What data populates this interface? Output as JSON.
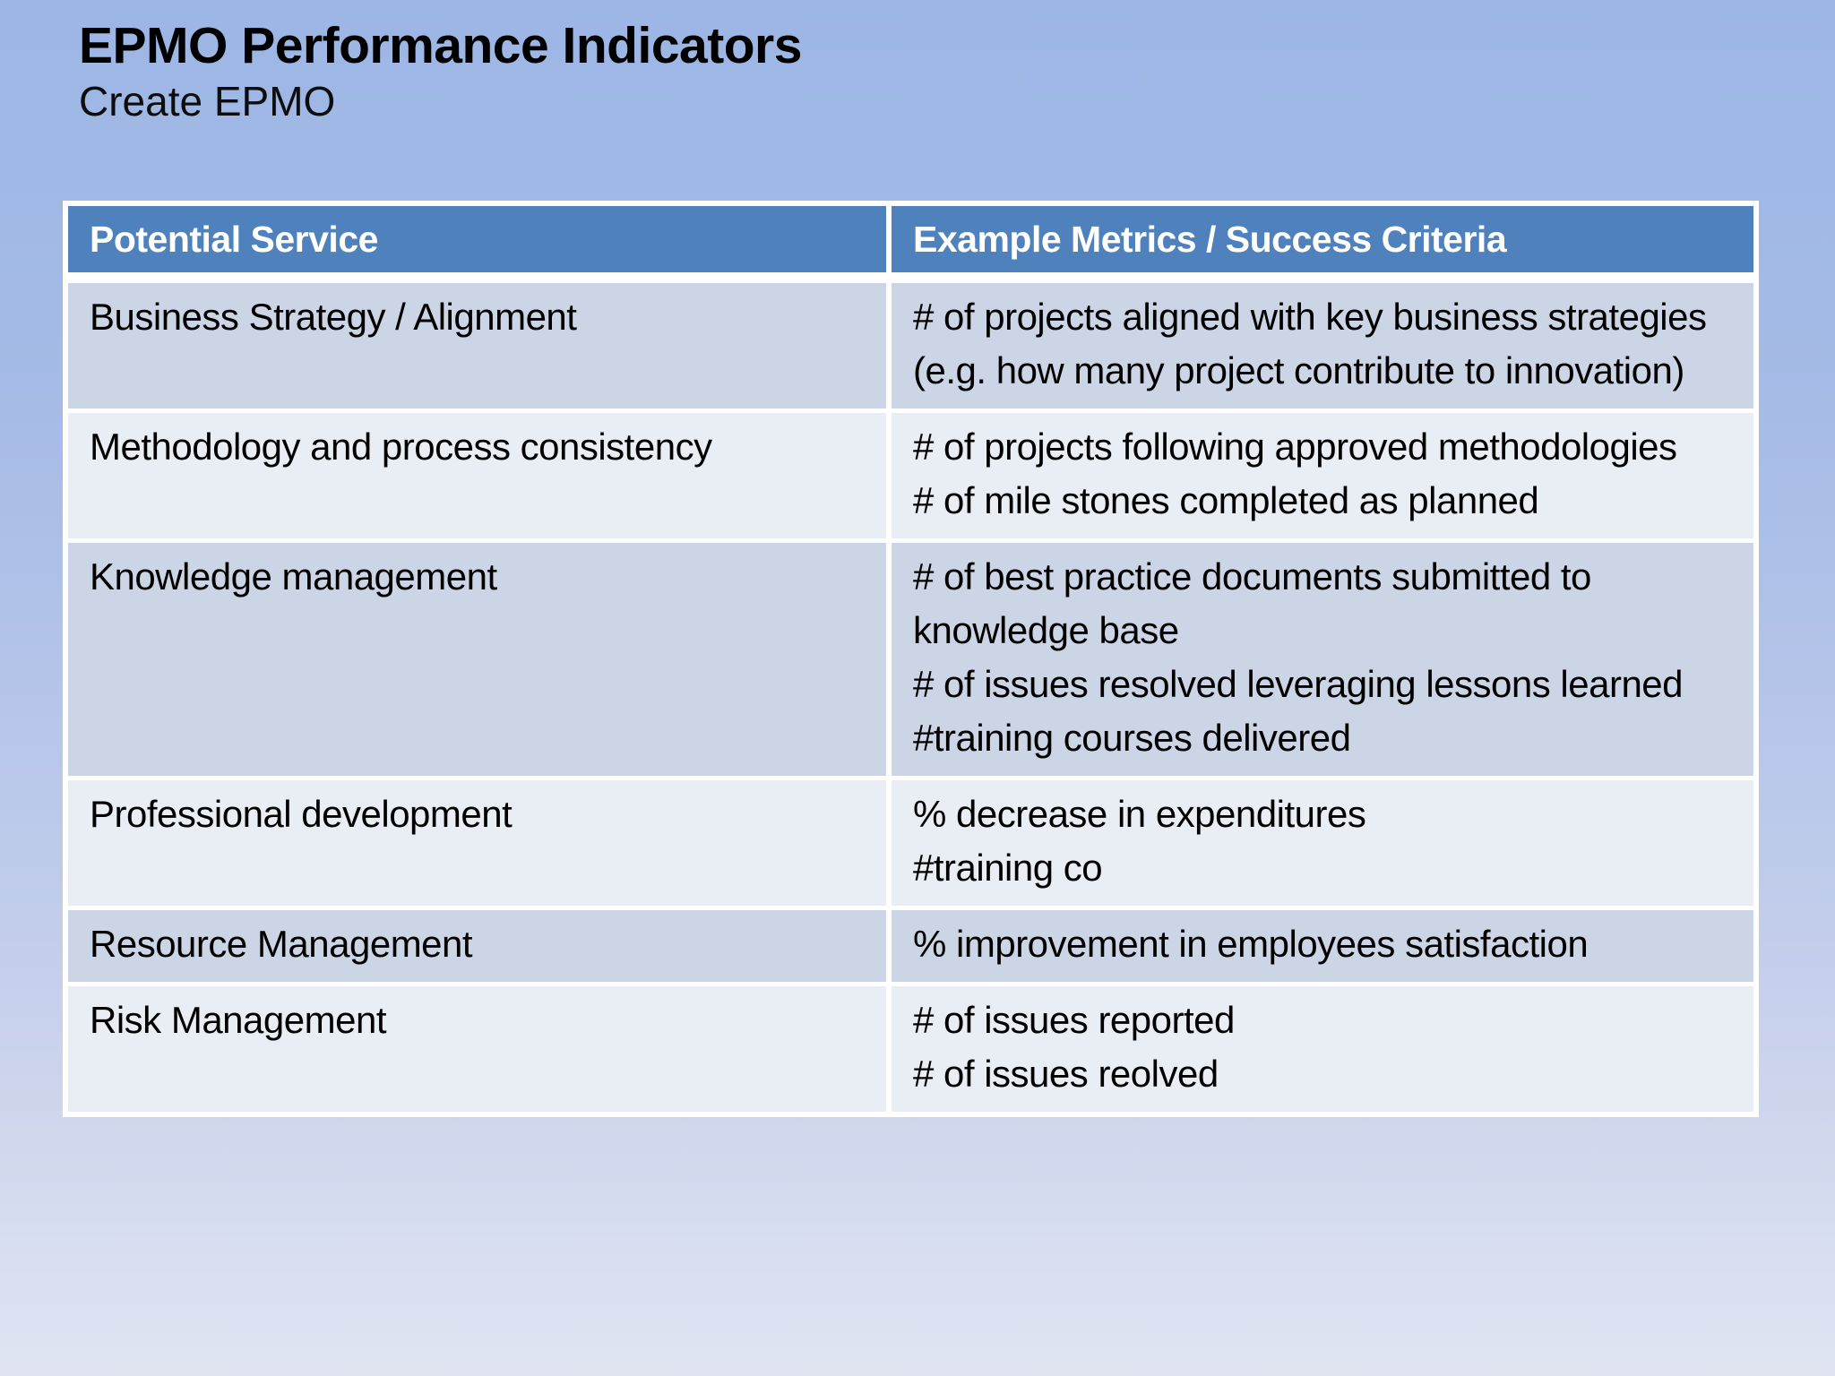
{
  "slide": {
    "title": "EPMO Performance Indicators",
    "subtitle": "Create EPMO"
  },
  "table": {
    "columns": [
      "Potential Service",
      "Example Metrics / Success Criteria"
    ],
    "rows": [
      {
        "service": "Business Strategy / Alignment",
        "metrics": [
          "# of projects aligned with key business strategies (e.g. how many project contribute to innovation)"
        ]
      },
      {
        "service": "Methodology and process consistency",
        "metrics": [
          "# of projects following approved methodologies",
          "# of mile stones completed as planned"
        ]
      },
      {
        "service": "Knowledge management",
        "metrics": [
          "# of best practice documents submitted to knowledge base",
          "# of issues resolved leveraging lessons learned",
          "#training courses delivered"
        ]
      },
      {
        "service": "Professional development",
        "metrics": [
          "% decrease in expenditures",
          "#training co"
        ]
      },
      {
        "service": "Resource Management",
        "metrics": [
          "% improvement in employees satisfaction"
        ]
      },
      {
        "service": "Risk Management",
        "metrics": [
          "# of issues reported",
          "# of issues reolved"
        ]
      }
    ]
  },
  "colors": {
    "header_blue": "#4f81bd",
    "row_dark": "#ccd5e5",
    "row_light": "#e9edf4",
    "header_text": "#ffffff",
    "body_text": "#000000",
    "background_top": "#9cb6e5",
    "background_bottom": "#e0e5f2",
    "table_border": "#ffffff"
  }
}
